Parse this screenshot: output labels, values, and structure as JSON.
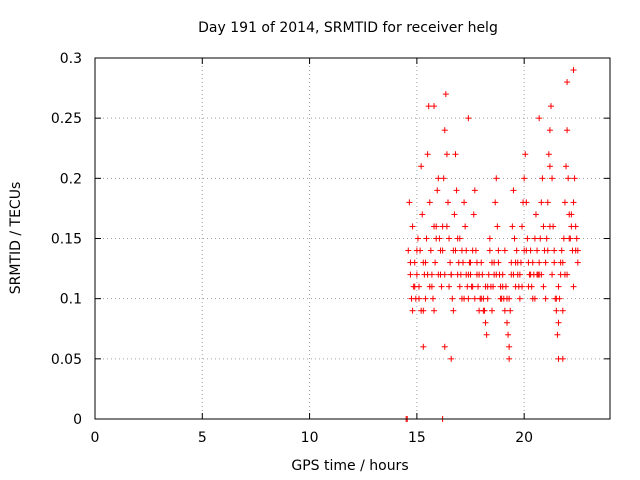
{
  "chart_data": {
    "type": "scatter",
    "title": "Day 191 of 2014, SRMTID for receiver helg",
    "xlabel": "GPS time / hours",
    "ylabel": "SRMTID / TECUs",
    "xlim": [
      0,
      24
    ],
    "ylim": [
      0,
      0.3
    ],
    "x_ticks": [
      0,
      5,
      10,
      15,
      20
    ],
    "x_tick_labels": [
      "0",
      "5",
      "10",
      "15",
      "20"
    ],
    "y_ticks": [
      0,
      0.05,
      0.1,
      0.15,
      0.2,
      0.25,
      0.3
    ],
    "y_tick_labels": [
      "0",
      "0.05",
      "0.1",
      "0.15",
      "0.2",
      "0.25",
      "0.3"
    ],
    "grid": true,
    "marker": "+",
    "color": "#ff0000",
    "series": [
      {
        "x": [
          14.5,
          14.55,
          16.2,
          14.6,
          14.65,
          14.7,
          14.75,
          14.8,
          14.85,
          14.9,
          14.95,
          15.0,
          15.05,
          15.1,
          15.15,
          15.2,
          15.25,
          15.3,
          15.35,
          15.4,
          15.45,
          15.5,
          15.55,
          15.6,
          15.65,
          15.7,
          15.75,
          15.8,
          15.85,
          15.9,
          15.95,
          16.0,
          16.05,
          16.1,
          16.15,
          16.2,
          16.25,
          16.3,
          16.35,
          16.4,
          16.45,
          16.5,
          16.55,
          16.6,
          16.65,
          16.7,
          16.75,
          16.8,
          16.85,
          16.9,
          16.95,
          17.0,
          17.05,
          17.1,
          17.15,
          17.2,
          17.25,
          17.3,
          17.35,
          17.4,
          17.45,
          17.5,
          17.55,
          17.6,
          17.65,
          17.7,
          17.75,
          17.8,
          17.85,
          17.9,
          17.95,
          18.0,
          18.05,
          18.1,
          18.15,
          18.2,
          18.25,
          18.3,
          18.35,
          18.4,
          18.45,
          18.5,
          18.55,
          18.6,
          18.65,
          18.7,
          18.75,
          18.8,
          18.85,
          18.9,
          18.95,
          19.0,
          19.05,
          19.1,
          19.15,
          19.2,
          19.25,
          19.3,
          19.35,
          19.4,
          19.45,
          19.5,
          19.55,
          19.6,
          19.65,
          19.7,
          19.75,
          19.8,
          19.85,
          19.9,
          19.95,
          20.0,
          20.05,
          20.1,
          20.15,
          20.2,
          20.25,
          20.3,
          20.35,
          20.4,
          20.45,
          20.5,
          20.55,
          20.6,
          20.65,
          20.7,
          20.75,
          20.8,
          20.85,
          20.9,
          20.95,
          21.0,
          21.05,
          21.1,
          21.15,
          21.2,
          21.25,
          21.3,
          21.35,
          21.4,
          21.45,
          21.5,
          21.55,
          21.6,
          21.65,
          21.7,
          21.75,
          21.8,
          21.85,
          21.9,
          21.95,
          22.0,
          22.05,
          22.1,
          22.15,
          22.2,
          22.25,
          22.3,
          22.35,
          22.4,
          22.45,
          22.5,
          14.7,
          14.9,
          15.1,
          15.3,
          15.5,
          15.7,
          15.9,
          16.1,
          16.3,
          16.5,
          16.7,
          16.9,
          17.1,
          17.3,
          17.5,
          17.7,
          17.9,
          18.1,
          18.3,
          18.5,
          18.7,
          18.9,
          19.1,
          19.3,
          19.5,
          19.7,
          19.9,
          20.1,
          20.3,
          20.5,
          20.7,
          20.9,
          21.1,
          21.3,
          21.5,
          21.7,
          21.9,
          22.1,
          22.3,
          22.5,
          14.8,
          15.0,
          15.2,
          15.4,
          15.6,
          15.8,
          16.0,
          16.2,
          16.4,
          16.6,
          16.8,
          17.0,
          17.2,
          17.4,
          17.6,
          17.8,
          18.0,
          18.2,
          18.4,
          18.6,
          18.8,
          19.0,
          19.2,
          19.4,
          19.6,
          19.8,
          20.0,
          20.2,
          20.4,
          20.6,
          20.8,
          21.0,
          21.2,
          21.4,
          21.6,
          21.8,
          22.0,
          22.2,
          22.4,
          15.3,
          15.8,
          16.3,
          16.6,
          17.4,
          19.3,
          20.7,
          21.2,
          21.6,
          21.8,
          22.0,
          22.3
        ],
        "y": [
          0.0,
          0.0,
          0.0,
          0.14,
          0.18,
          0.12,
          0.1,
          0.09,
          0.11,
          0.13,
          0.1,
          0.12,
          0.15,
          0.11,
          0.14,
          0.21,
          0.17,
          0.13,
          0.12,
          0.1,
          0.15,
          0.22,
          0.26,
          0.18,
          0.14,
          0.12,
          0.1,
          0.09,
          0.13,
          0.16,
          0.19,
          0.2,
          0.15,
          0.12,
          0.11,
          0.16,
          0.2,
          0.24,
          0.27,
          0.22,
          0.18,
          0.15,
          0.13,
          0.12,
          0.1,
          0.14,
          0.17,
          0.22,
          0.19,
          0.15,
          0.13,
          0.11,
          0.12,
          0.14,
          0.13,
          0.18,
          0.16,
          0.12,
          0.11,
          0.1,
          0.13,
          0.12,
          0.11,
          0.14,
          0.17,
          0.19,
          0.14,
          0.12,
          0.11,
          0.09,
          0.1,
          0.13,
          0.12,
          0.1,
          0.09,
          0.08,
          0.07,
          0.1,
          0.12,
          0.15,
          0.11,
          0.09,
          0.11,
          0.13,
          0.18,
          0.2,
          0.16,
          0.13,
          0.12,
          0.11,
          0.1,
          0.12,
          0.1,
          0.09,
          0.11,
          0.08,
          0.07,
          0.06,
          0.09,
          0.12,
          0.16,
          0.19,
          0.15,
          0.13,
          0.14,
          0.12,
          0.11,
          0.1,
          0.13,
          0.16,
          0.18,
          0.2,
          0.22,
          0.18,
          0.15,
          0.13,
          0.12,
          0.14,
          0.11,
          0.1,
          0.12,
          0.15,
          0.17,
          0.14,
          0.12,
          0.13,
          0.15,
          0.18,
          0.2,
          0.16,
          0.14,
          0.13,
          0.15,
          0.18,
          0.22,
          0.24,
          0.26,
          0.2,
          0.16,
          0.13,
          0.1,
          0.09,
          0.07,
          0.08,
          0.1,
          0.12,
          0.14,
          0.13,
          0.15,
          0.18,
          0.21,
          0.24,
          0.2,
          0.17,
          0.15,
          0.16,
          0.14,
          0.18,
          0.2,
          0.16,
          0.15,
          0.14,
          0.13,
          0.11,
          0.1,
          0.09,
          0.12,
          0.11,
          0.15,
          0.14,
          0.12,
          0.11,
          0.09,
          0.12,
          0.1,
          0.14,
          0.13,
          0.1,
          0.12,
          0.09,
          0.11,
          0.13,
          0.12,
          0.1,
          0.14,
          0.1,
          0.12,
          0.13,
          0.11,
          0.14,
          0.12,
          0.1,
          0.12,
          0.11,
          0.14,
          0.12,
          0.1,
          0.13,
          0.12,
          0.15,
          0.11,
          0.13,
          0.16,
          0.14,
          0.09,
          0.13,
          0.11,
          0.16,
          0.12,
          0.14,
          0.16,
          0.12,
          0.14,
          0.15,
          0.1,
          0.12,
          0.11,
          0.13,
          0.1,
          0.11,
          0.14,
          0.12,
          0.14,
          0.11,
          0.1,
          0.13,
          0.11,
          0.12,
          0.14,
          0.11,
          0.13,
          0.12,
          0.12,
          0.1,
          0.16,
          0.14,
          0.11,
          0.09,
          0.12,
          0.17,
          0.14,
          0.06,
          0.26,
          0.06,
          0.05,
          0.25,
          0.05,
          0.25,
          0.21,
          0.05,
          0.05,
          0.28,
          0.29
        ]
      }
    ]
  }
}
